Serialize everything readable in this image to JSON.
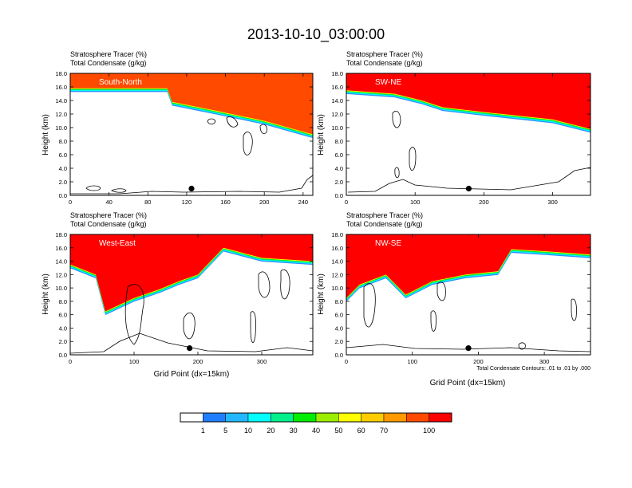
{
  "title": "2013-10-10_03:00:00",
  "panel_header": {
    "line1": "Stratosphere Tracer   (%)",
    "line2": "Total Condensate   (g/kg)"
  },
  "ylabel": "Height (km)",
  "xlabel": "Grid Point (dx=15km)",
  "contour_note": "Total Condensate Contours: .01 to .01 by .000",
  "colors": {
    "red": "#ff0000",
    "orange": "#ff4a00",
    "cyan": "#00ffff",
    "blue": "#2c8cff",
    "seafoam": "#00e08a",
    "green": "#00ee00",
    "yellow": "#ffff00"
  },
  "colorbar": {
    "labels": [
      "1",
      "5",
      "10",
      "20",
      "30",
      "40",
      "50",
      "60",
      "70",
      "100"
    ],
    "colors": [
      "#ffffff",
      "#1f7fff",
      "#22b8ff",
      "#00ffff",
      "#00f08c",
      "#00ee00",
      "#9cee00",
      "#ffff00",
      "#ffcc00",
      "#ff9900",
      "#ff4a00",
      "#ff0000"
    ]
  },
  "chart_data": [
    {
      "type": "area",
      "panel": "South-North",
      "label": "South-North",
      "xlim": [
        0,
        250
      ],
      "xticks": [
        "0",
        "40",
        "80",
        "120",
        "160",
        "200",
        "240"
      ],
      "ylim": [
        0,
        18
      ],
      "yticks": [
        "0.0",
        "2.0",
        "4.0",
        "6.0",
        "8.0",
        "10.0",
        "12.0",
        "14.0",
        "16.0",
        "18.0"
      ],
      "tracer_base_km": {
        "x": [
          0,
          100,
          105,
          150,
          200,
          250
        ],
        "y": [
          15.8,
          15.8,
          13.8,
          12.5,
          11.0,
          9.0
        ]
      },
      "marker": {
        "x": 125,
        "y": 1.0
      }
    },
    {
      "type": "area",
      "panel": "SW-NE",
      "label": "SW-NE",
      "xlim": [
        0,
        355
      ],
      "xticks": [
        "0",
        "100",
        "200",
        "300"
      ],
      "ylim": [
        0,
        18
      ],
      "yticks": [
        "0.0",
        "2.0",
        "4.0",
        "6.0",
        "8.0",
        "10.0",
        "12.0",
        "14.0",
        "16.0",
        "18.0"
      ],
      "tracer_base_km": {
        "x": [
          0,
          70,
          110,
          140,
          200,
          300,
          355
        ],
        "y": [
          15.5,
          15.0,
          14.0,
          13.0,
          12.3,
          11.2,
          9.8
        ]
      },
      "marker": {
        "x": 178,
        "y": 1.0
      }
    },
    {
      "type": "area",
      "panel": "West-East",
      "label": "West-East",
      "xlim": [
        0,
        380
      ],
      "xticks": [
        "0",
        "100",
        "200",
        "300"
      ],
      "ylim": [
        0,
        18
      ],
      "yticks": [
        "0.0",
        "2.0",
        "4.0",
        "6.0",
        "8.0",
        "10.0",
        "12.0",
        "14.0",
        "16.0",
        "18.0"
      ],
      "tracer_base_km": {
        "x": [
          0,
          40,
          55,
          100,
          140,
          170,
          200,
          240,
          300,
          380
        ],
        "y": [
          13.5,
          12.0,
          6.5,
          8.5,
          9.8,
          11.0,
          12.0,
          16.0,
          14.5,
          14.0
        ]
      },
      "marker": {
        "x": 187,
        "y": 1.0
      }
    },
    {
      "type": "area",
      "panel": "NW-SE",
      "label": "NW-SE",
      "xlim": [
        0,
        370
      ],
      "xticks": [
        "0",
        "100",
        "200",
        "300"
      ],
      "ylim": [
        0,
        18
      ],
      "yticks": [
        "0.0",
        "2.0",
        "4.0",
        "6.0",
        "8.0",
        "10.0",
        "12.0",
        "14.0",
        "16.0",
        "18.0"
      ],
      "tracer_base_km": {
        "x": [
          0,
          20,
          60,
          90,
          130,
          180,
          230,
          250,
          300,
          370
        ],
        "y": [
          8.5,
          10.5,
          12.0,
          9.0,
          11.0,
          12.0,
          12.5,
          15.8,
          15.5,
          15.0
        ]
      },
      "marker": {
        "x": 185,
        "y": 1.0
      }
    }
  ]
}
